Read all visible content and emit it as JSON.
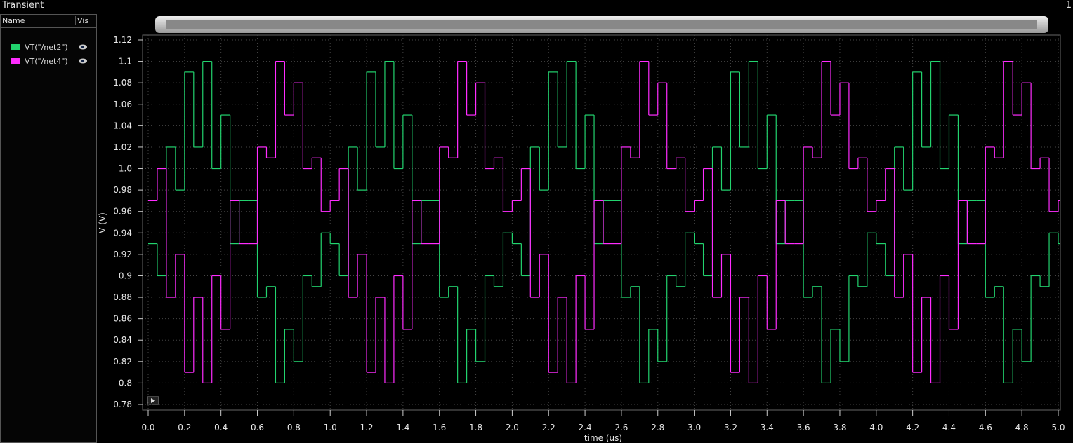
{
  "window": {
    "title": "Transient",
    "number": "1"
  },
  "panel": {
    "name_header": "Name",
    "vis_header": "Vis"
  },
  "chart_data": {
    "type": "line",
    "drawstyle": "steps-post",
    "grid": true,
    "x_label": "time (us)",
    "y_label": "V (V)",
    "xlim": [
      0,
      5
    ],
    "ylim": [
      0.78,
      1.12
    ],
    "xticks": [
      {
        "value": 0,
        "label": "0.0"
      },
      0.2,
      0.4,
      0.6,
      0.8,
      {
        "value": 1,
        "label": "1.0"
      },
      1.2,
      1.4,
      1.6,
      1.8,
      {
        "value": 2,
        "label": "2.0"
      },
      2.2,
      2.4,
      2.6,
      2.8,
      {
        "value": 3,
        "label": "3.0"
      },
      3.2,
      3.4,
      3.6,
      3.8,
      {
        "value": 4,
        "label": "4.0"
      },
      4.2,
      4.4,
      4.6,
      4.8,
      {
        "value": 5,
        "label": "5.0"
      }
    ],
    "yticks": [
      0.78,
      0.8,
      0.82,
      0.84,
      0.86,
      0.88,
      0.9,
      0.92,
      0.94,
      0.96,
      0.98,
      {
        "value": 1,
        "label": "1.0"
      },
      1.02,
      1.04,
      1.06,
      1.08,
      1.1,
      1.12
    ],
    "x": [
      0,
      0.05,
      0.1,
      0.15,
      0.2,
      0.25,
      0.3,
      0.35,
      0.4,
      0.45,
      0.5,
      0.55,
      0.6,
      0.65,
      0.7,
      0.75,
      0.8,
      0.85,
      0.9,
      0.95,
      1,
      1.05,
      1.1,
      1.15,
      1.2,
      1.25,
      1.3,
      1.35,
      1.4,
      1.45,
      1.5,
      1.55,
      1.6,
      1.65,
      1.7,
      1.75,
      1.8,
      1.85,
      1.9,
      1.95,
      2,
      2.05,
      2.1,
      2.15,
      2.2,
      2.25,
      2.3,
      2.35,
      2.4,
      2.45,
      2.5,
      2.55,
      2.6,
      2.65,
      2.7,
      2.75,
      2.8,
      2.85,
      2.9,
      2.95,
      3,
      3.05,
      3.1,
      3.15,
      3.2,
      3.25,
      3.3,
      3.35,
      3.4,
      3.45,
      3.5,
      3.55,
      3.6,
      3.65,
      3.7,
      3.75,
      3.8,
      3.85,
      3.9,
      3.95,
      4,
      4.05,
      4.1,
      4.15,
      4.2,
      4.25,
      4.3,
      4.35,
      4.4,
      4.45,
      4.5,
      4.55,
      4.6,
      4.65,
      4.7,
      4.75,
      4.8,
      4.85,
      4.9,
      4.95,
      5
    ],
    "series": [
      {
        "name": "VT(\"/net2\")",
        "color": "#22d36e",
        "values": [
          0.93,
          0.9,
          1.02,
          0.98,
          1.09,
          1.02,
          1.1,
          1.0,
          1.05,
          0.93,
          0.97,
          0.97,
          0.88,
          0.89,
          0.8,
          0.85,
          0.82,
          0.9,
          0.89,
          0.94,
          0.93,
          0.9,
          1.02,
          0.98,
          1.09,
          1.02,
          1.1,
          1.0,
          1.05,
          0.93,
          0.97,
          0.97,
          0.88,
          0.89,
          0.8,
          0.85,
          0.82,
          0.9,
          0.89,
          0.94,
          0.93,
          0.9,
          1.02,
          0.98,
          1.09,
          1.02,
          1.1,
          1.0,
          1.05,
          0.93,
          0.97,
          0.97,
          0.88,
          0.89,
          0.8,
          0.85,
          0.82,
          0.9,
          0.89,
          0.94,
          0.93,
          0.9,
          1.02,
          0.98,
          1.09,
          1.02,
          1.1,
          1.0,
          1.05,
          0.93,
          0.97,
          0.97,
          0.88,
          0.89,
          0.8,
          0.85,
          0.82,
          0.9,
          0.89,
          0.94,
          0.93,
          0.9,
          1.02,
          0.98,
          1.09,
          1.02,
          1.1,
          1.0,
          1.05,
          0.93,
          0.97,
          0.97,
          0.88,
          0.89,
          0.8,
          0.85,
          0.82,
          0.9,
          0.89,
          0.94,
          0.93
        ]
      },
      {
        "name": "VT(\"/net4\")",
        "color": "#ff2cff",
        "values": [
          0.97,
          1.0,
          0.88,
          0.92,
          0.81,
          0.88,
          0.8,
          0.9,
          0.85,
          0.97,
          0.93,
          0.93,
          1.02,
          1.01,
          1.1,
          1.05,
          1.08,
          1.0,
          1.01,
          0.96,
          0.97,
          1.0,
          0.88,
          0.92,
          0.81,
          0.88,
          0.8,
          0.9,
          0.85,
          0.97,
          0.93,
          0.93,
          1.02,
          1.01,
          1.1,
          1.05,
          1.08,
          1.0,
          1.01,
          0.96,
          0.97,
          1.0,
          0.88,
          0.92,
          0.81,
          0.88,
          0.8,
          0.9,
          0.85,
          0.97,
          0.93,
          0.93,
          1.02,
          1.01,
          1.1,
          1.05,
          1.08,
          1.0,
          1.01,
          0.96,
          0.97,
          1.0,
          0.88,
          0.92,
          0.81,
          0.88,
          0.8,
          0.9,
          0.85,
          0.97,
          0.93,
          0.93,
          1.02,
          1.01,
          1.1,
          1.05,
          1.08,
          1.0,
          1.01,
          0.96,
          0.97,
          1.0,
          0.88,
          0.92,
          0.81,
          0.88,
          0.8,
          0.9,
          0.85,
          0.97,
          0.93,
          0.93,
          1.02,
          1.01,
          1.1,
          1.05,
          1.08,
          1.0,
          1.01,
          0.96,
          0.97
        ]
      }
    ]
  }
}
